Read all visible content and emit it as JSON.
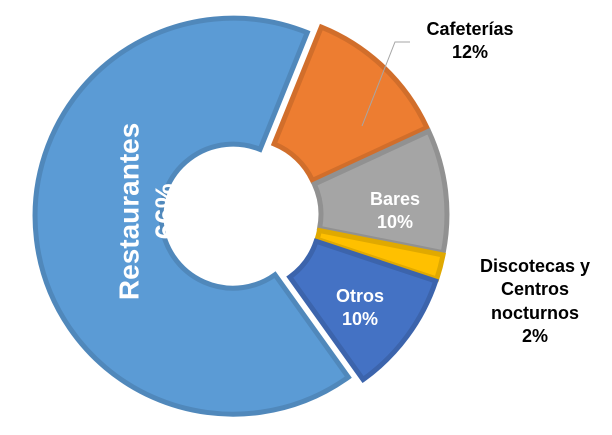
{
  "chart_data": {
    "type": "donut",
    "categories": [
      "Restaurantes",
      "Cafeterías",
      "Bares",
      "Discotecas y Centros nocturnos",
      "Otros"
    ],
    "values": [
      66,
      12,
      10,
      2,
      10
    ],
    "value_labels": [
      "66%",
      "12%",
      "10%",
      "2%",
      "10%"
    ],
    "colors": [
      "#5b9bd5",
      "#ed7d31",
      "#a5a5a5",
      "#ffc000",
      "#4472c4"
    ]
  }
}
